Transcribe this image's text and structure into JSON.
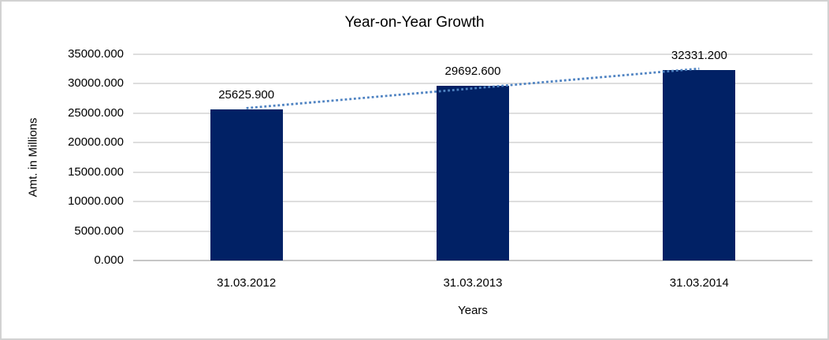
{
  "chart_data": {
    "type": "bar",
    "title": "Year-on-Year Growth",
    "xlabel": "Years",
    "ylabel": "Amt. in Millions",
    "categories": [
      "31.03.2012",
      "31.03.2013",
      "31.03.2014"
    ],
    "values": [
      25625.9,
      29692.6,
      32331.2
    ],
    "data_labels": [
      "25625.900",
      "29692.600",
      "32331.200"
    ],
    "ytick_labels": [
      "35000.000",
      "30000.000",
      "25000.000",
      "20000.000",
      "15000.000",
      "10000.000",
      "5000.000",
      "0.000"
    ],
    "ylim": [
      0,
      35000
    ],
    "ytick_step": 5000,
    "grid": true,
    "legend": "none",
    "trendline": {
      "type": "linear",
      "style": "dotted"
    },
    "colors": {
      "bar": "#012165",
      "trendline": "#4f83c2",
      "gridline": "#dedede",
      "axis_line": "#c6c6c6",
      "text": "#000000",
      "chart_border": "#d2d2d2",
      "background": "#ffffff"
    }
  }
}
